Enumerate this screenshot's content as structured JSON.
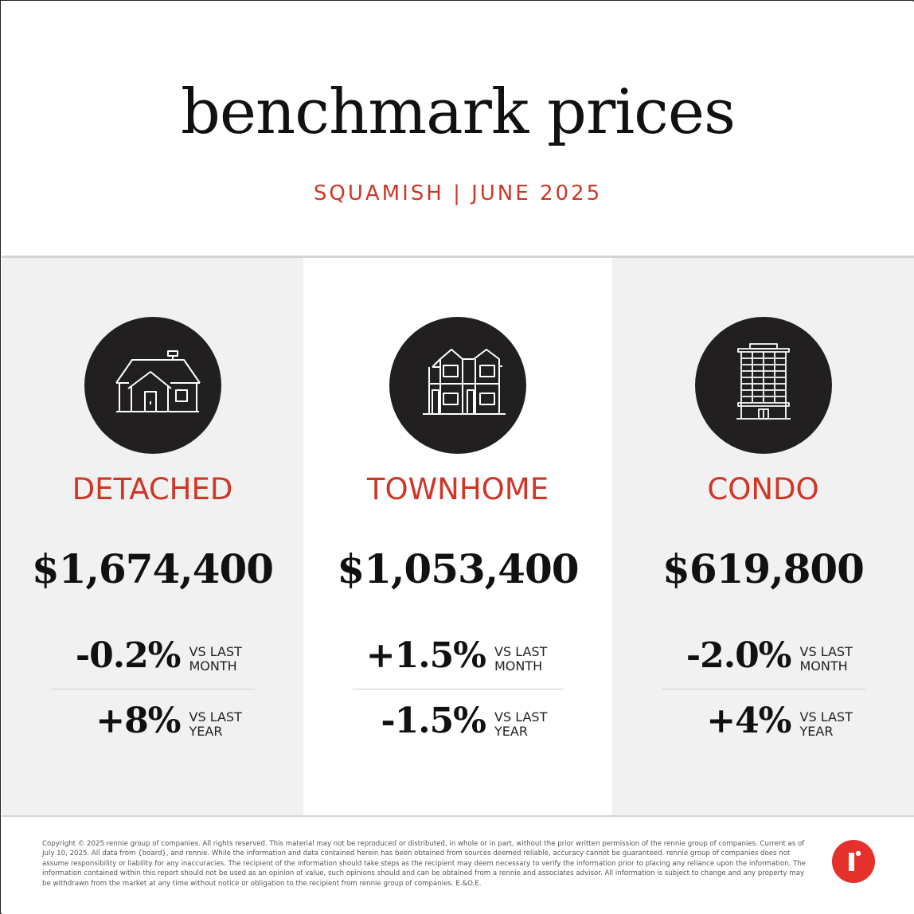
{
  "header": {
    "title": "benchmark prices",
    "subtitle": "SQUAMISH | JUNE 2025"
  },
  "colors": {
    "accent_red": "#d13526",
    "icon_circle": "#221f20",
    "panel_gray": "#f1f1f1",
    "logo_red": "#e4312b"
  },
  "categories": [
    {
      "icon": "detached-house-icon",
      "label": "DETACHED",
      "price": "$1,674,400",
      "month_change": "-0.2%",
      "month_label": "VS LAST\nMONTH",
      "year_change": "+8%",
      "year_label": "VS LAST\nYEAR"
    },
    {
      "icon": "townhome-icon",
      "label": "TOWNHOME",
      "price": "$1,053,400",
      "month_change": "+1.5%",
      "month_label": "VS LAST\nMONTH",
      "year_change": "-1.5%",
      "year_label": "VS LAST\nYEAR"
    },
    {
      "icon": "condo-building-icon",
      "label": "CONDO",
      "price": "$619,800",
      "month_change": "-2.0%",
      "month_label": "VS LAST\nMONTH",
      "year_change": "+4%",
      "year_label": "VS LAST\nYEAR"
    }
  ],
  "footer": {
    "disclaimer": "Copyright © 2025 rennie group of companies. All rights reserved. This material may not be reproduced or distributed, in whole or in part, without the prior written permission of the rennie group of companies. Current as of July 10, 2025. All data from {board}, and rennie. While the information and data contained herein has been obtained from sources deemed reliable, accuracy cannot be guaranteed. rennie group of companies does not assume responsibility or liability for any inaccuracies. The recipient of the information should take steps as the recipient may deem necessary to verify the information prior to placing any reliance upon the information. The information contained within this report should not be used as an opinion of value, such opinions should and can be obtained from a rennie and associates advisor. All information is subject to change and any property may be withdrawn from the market at any time without notice or obligation to the recipient from rennie group of companies. E.&O.E.",
    "logo": "rennie-logo"
  }
}
